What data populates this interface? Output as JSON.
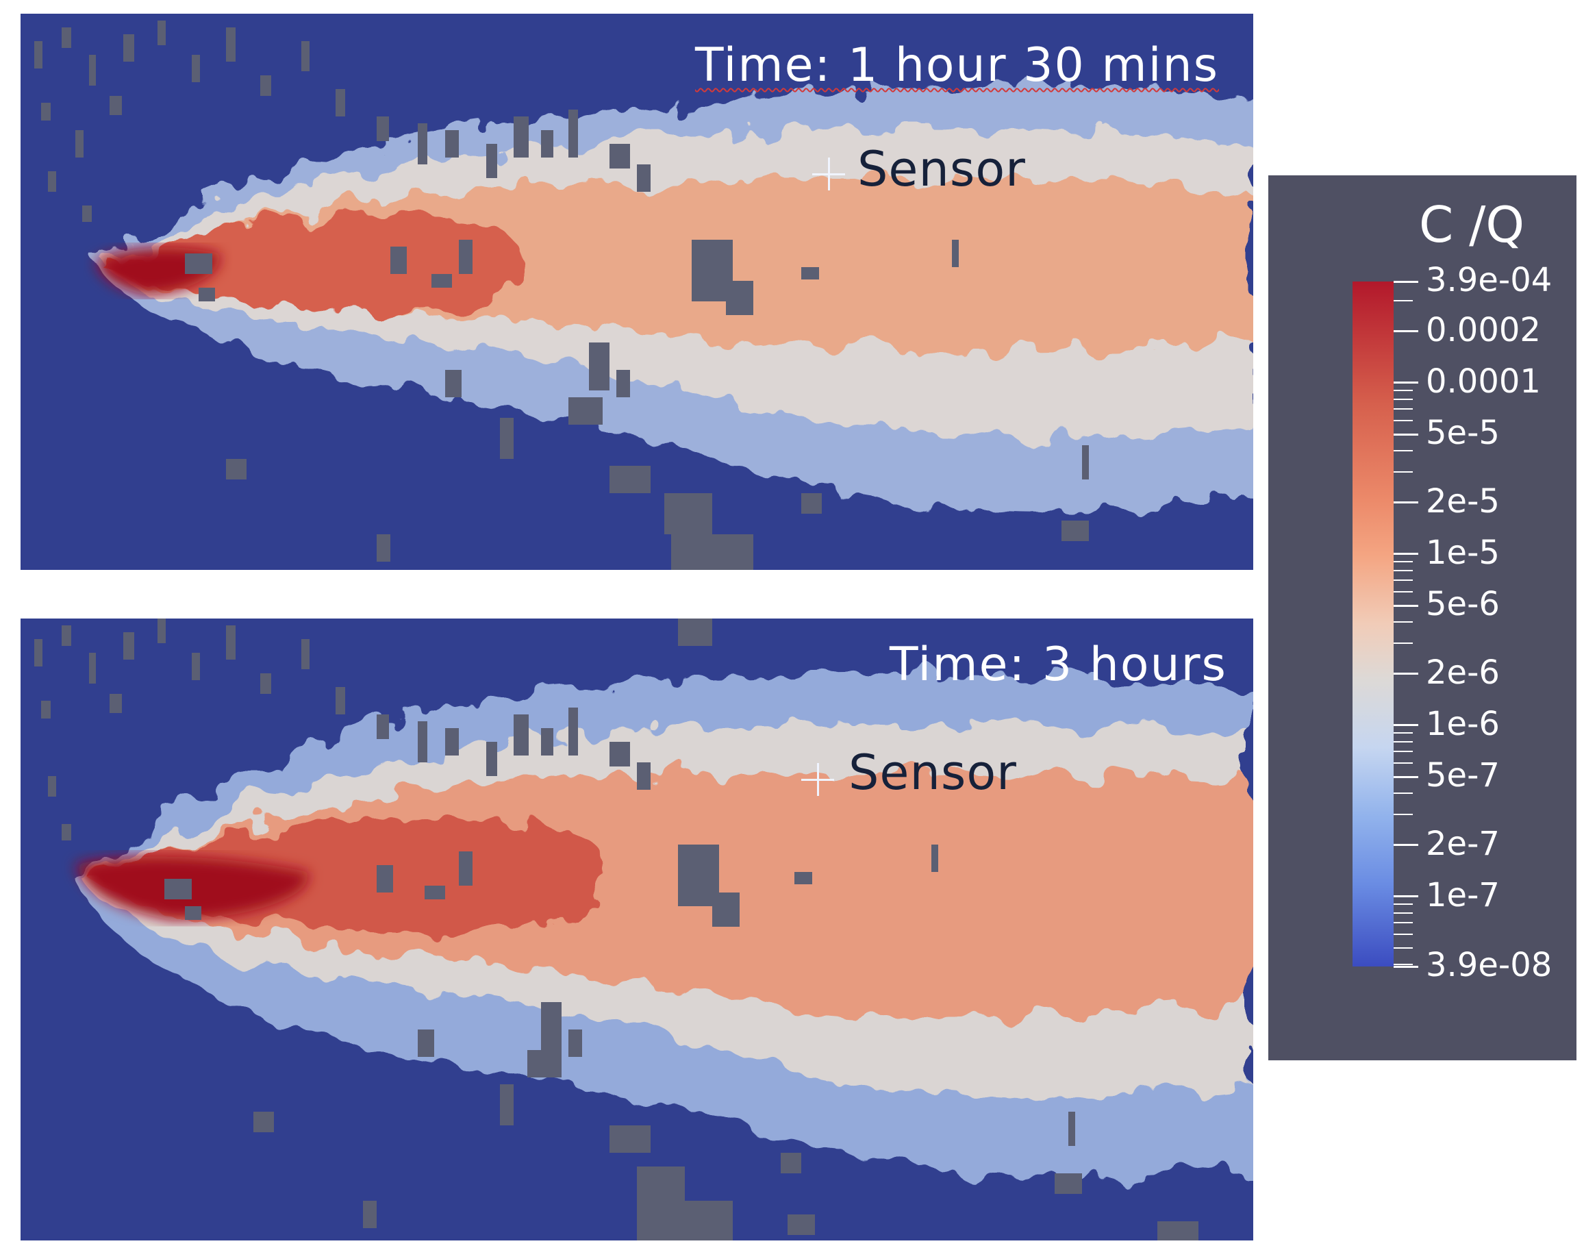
{
  "panels": [
    {
      "time_label": "Time: 1 hour 30 mins",
      "sensor_label": "Sensor"
    },
    {
      "time_label": "Time: 3 hours",
      "sensor_label": "Sensor"
    }
  ],
  "colors": {
    "background": "#313f8f",
    "building": "#5b5f73",
    "low": "#3b4cc0",
    "mid": "#dcdcdc",
    "high": "#b2182b",
    "legend_bg": "#4f5063"
  },
  "chart_data": {
    "type": "heatmap",
    "scale": "log",
    "colorbar_title": "C /Q",
    "range": [
      3.9e-08,
      0.00039
    ],
    "tick_labels": [
      "3.9e-04",
      "0.0002",
      "0.0001",
      "5e-5",
      "2e-5",
      "1e-5",
      "5e-6",
      "2e-6",
      "1e-6",
      "5e-7",
      "2e-7",
      "1e-7",
      "3.9e-08"
    ],
    "tick_values": [
      0.00039,
      0.0002,
      0.0001,
      5e-05,
      2e-05,
      1e-05,
      5e-06,
      2e-06,
      1e-06,
      5e-07,
      2e-07,
      1e-07,
      3.9e-08
    ]
  }
}
